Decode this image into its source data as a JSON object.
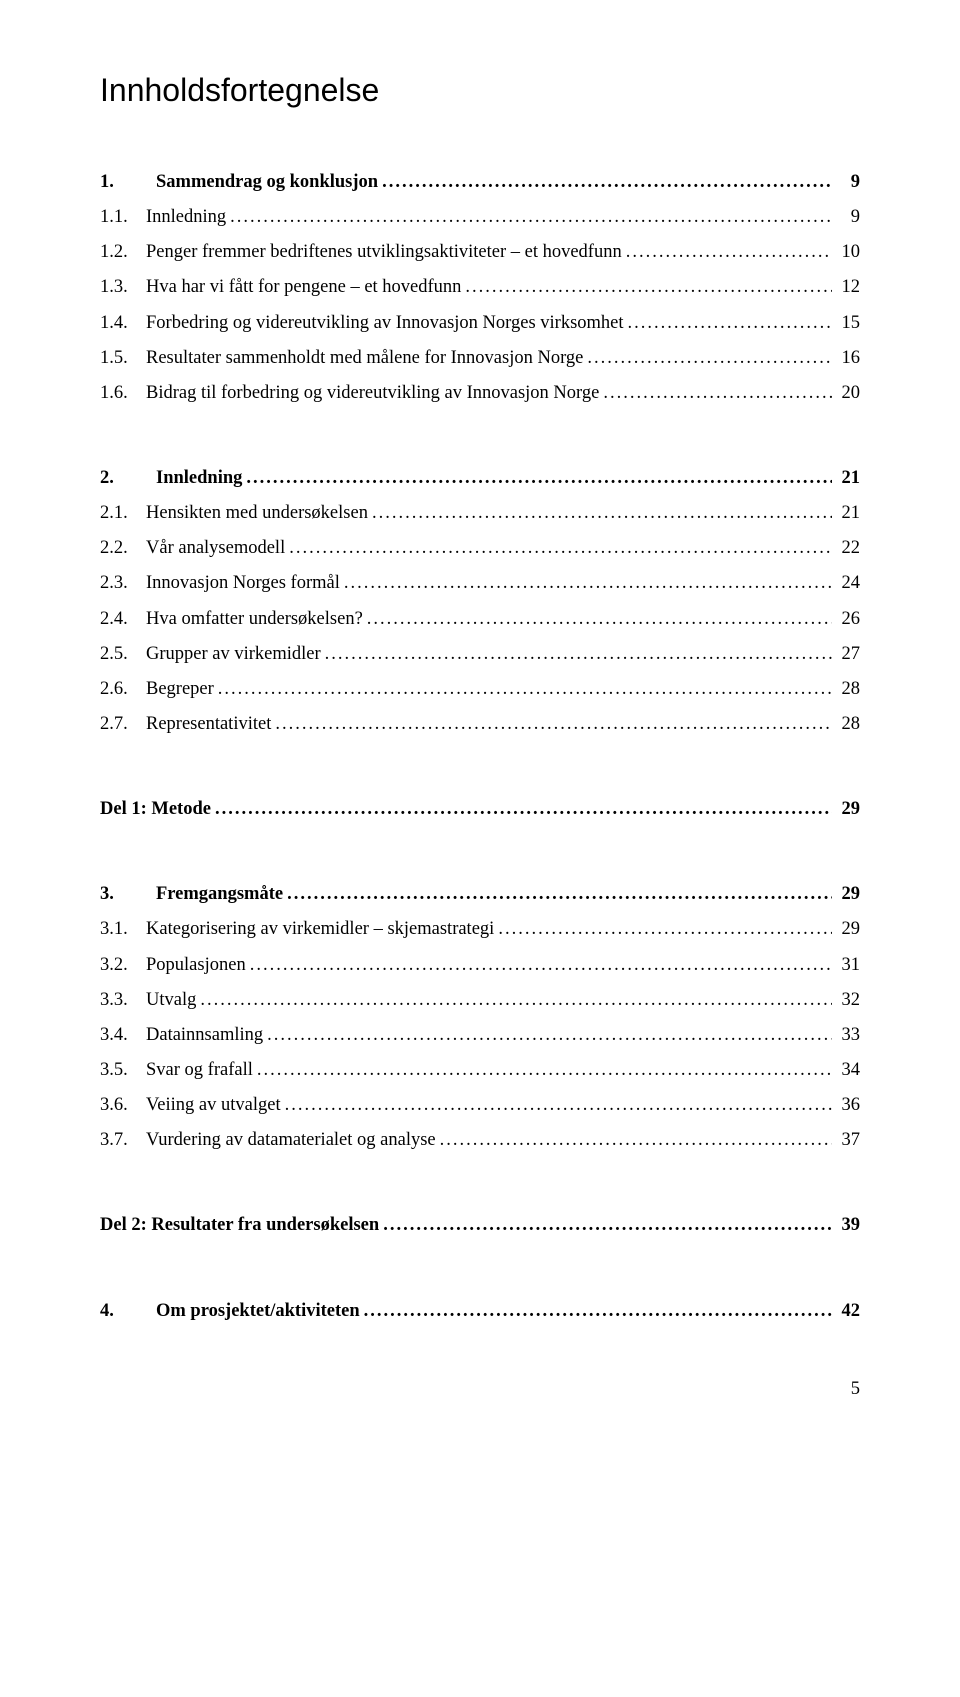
{
  "title": "Innholdsfortegnelse",
  "page_number": "5",
  "leader_fill": "......................................................................................................................................................",
  "entries": [
    {
      "lvl": 1,
      "num": "1.",
      "label": "Sammendrag og konklusjon",
      "pg": "9"
    },
    {
      "lvl": 2,
      "num": "1.1.",
      "label": "Innledning",
      "pg": "9"
    },
    {
      "lvl": 2,
      "num": "1.2.",
      "label": "Penger fremmer bedriftenes utviklingsaktiviteter – et hovedfunn",
      "pg": "10"
    },
    {
      "lvl": 2,
      "num": "1.3.",
      "label": "Hva har vi fått for pengene – et hovedfunn",
      "pg": "12"
    },
    {
      "lvl": 2,
      "num": "1.4.",
      "label": "Forbedring og videreutvikling av Innovasjon Norges virksomhet",
      "pg": "15"
    },
    {
      "lvl": 2,
      "num": "1.5.",
      "label": "Resultater sammenholdt med målene for Innovasjon Norge",
      "pg": "16"
    },
    {
      "lvl": 2,
      "num": "1.6.",
      "label": "Bidrag til forbedring og videreutvikling av Innovasjon Norge",
      "pg": "20"
    },
    {
      "lvl": 0
    },
    {
      "lvl": 1,
      "num": "2.",
      "label": "Innledning",
      "pg": "21"
    },
    {
      "lvl": 2,
      "num": "2.1.",
      "label": "Hensikten med undersøkelsen",
      "pg": "21"
    },
    {
      "lvl": 2,
      "num": "2.2.",
      "label": "Vår analysemodell",
      "pg": "22"
    },
    {
      "lvl": 2,
      "num": "2.3.",
      "label": "Innovasjon Norges formål",
      "pg": "24"
    },
    {
      "lvl": 2,
      "num": "2.4.",
      "label": "Hva omfatter undersøkelsen?",
      "pg": "26"
    },
    {
      "lvl": 2,
      "num": "2.5.",
      "label": "Grupper av virkemidler",
      "pg": "27"
    },
    {
      "lvl": 2,
      "num": "2.6.",
      "label": "Begreper",
      "pg": "28"
    },
    {
      "lvl": 2,
      "num": "2.7.",
      "label": "Representativitet",
      "pg": "28"
    },
    {
      "lvl": 0
    },
    {
      "lvl": 1,
      "num": "",
      "label": "Del 1: Metode",
      "pg": "29",
      "nonum": true
    },
    {
      "lvl": 0
    },
    {
      "lvl": 1,
      "num": "3.",
      "label": "Fremgangsmåte",
      "pg": "29"
    },
    {
      "lvl": 2,
      "num": "3.1.",
      "label": "Kategorisering av virkemidler – skjemastrategi",
      "pg": "29"
    },
    {
      "lvl": 2,
      "num": "3.2.",
      "label": "Populasjonen",
      "pg": "31"
    },
    {
      "lvl": 2,
      "num": "3.3.",
      "label": "Utvalg",
      "pg": "32"
    },
    {
      "lvl": 2,
      "num": "3.4.",
      "label": "Datainnsamling",
      "pg": "33"
    },
    {
      "lvl": 2,
      "num": "3.5.",
      "label": "Svar og frafall",
      "pg": "34"
    },
    {
      "lvl": 2,
      "num": "3.6.",
      "label": "Veiing av utvalget",
      "pg": "36"
    },
    {
      "lvl": 2,
      "num": "3.7.",
      "label": "Vurdering av datamaterialet og analyse",
      "pg": "37"
    },
    {
      "lvl": 0
    },
    {
      "lvl": 1,
      "num": "",
      "label": "Del 2: Resultater fra undersøkelsen",
      "pg": "39",
      "nonum": true
    },
    {
      "lvl": 0
    },
    {
      "lvl": 1,
      "num": "4.",
      "label": "Om prosjektet/aktiviteten",
      "pg": "42"
    }
  ]
}
